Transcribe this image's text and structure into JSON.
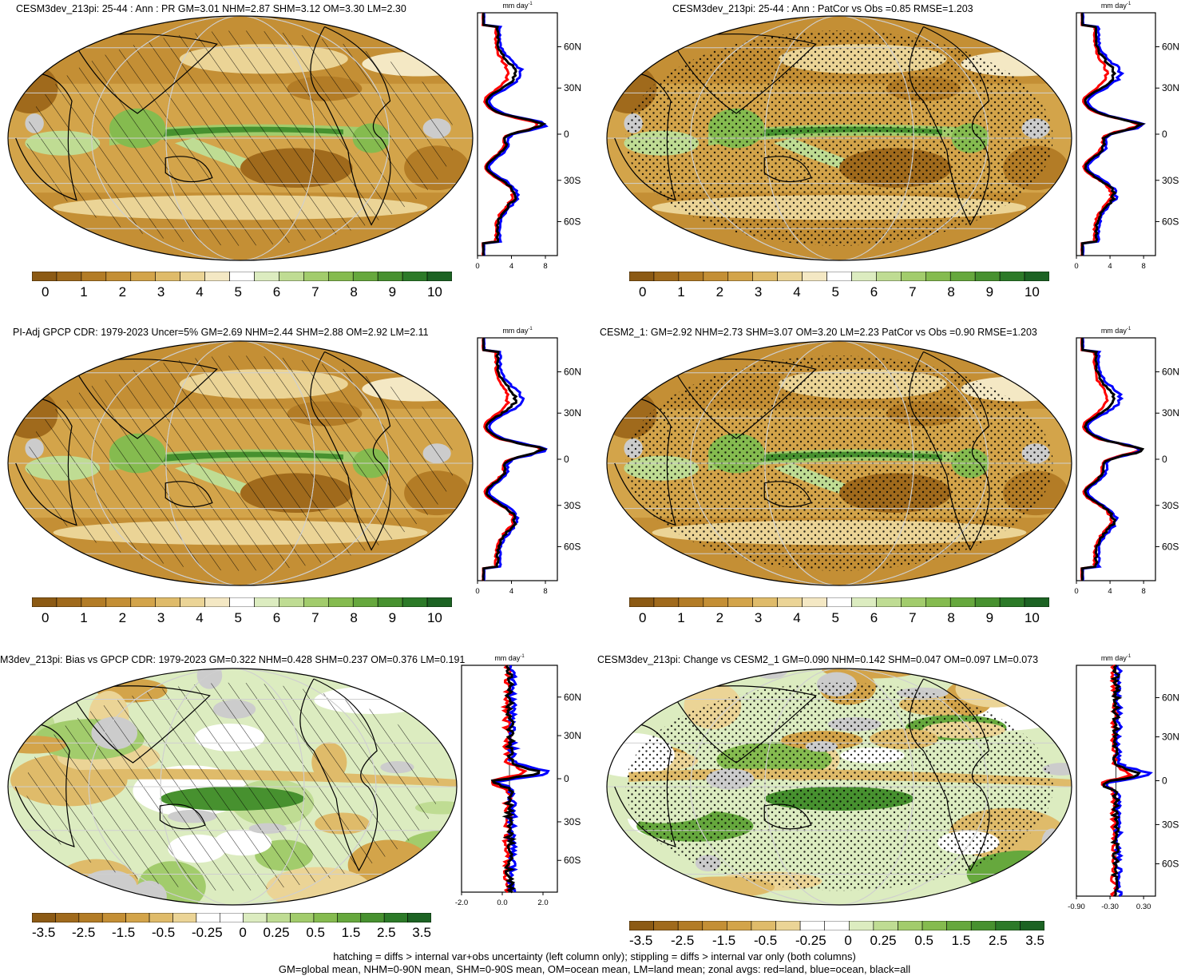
{
  "panels": [
    {
      "id": "p1",
      "title": "CESM3dev_213pi: 25-44 : Ann : PR GM=3.01 NHM=2.87 SHM=3.12 OM=3.30 LM=2.30",
      "pattern": "hatch",
      "colorbar": [
        "0",
        "1",
        "2",
        "3",
        "4",
        "5",
        "6",
        "7",
        "8",
        "9",
        "10"
      ],
      "xticks": [
        "0",
        "4",
        "8"
      ],
      "lats": [
        "60N",
        "30N",
        "0",
        "30S",
        "60S"
      ],
      "unit": "mm day",
      "unit_sup": "-1"
    },
    {
      "id": "p2",
      "title": "CESM3dev_213pi: 25-44 : Ann : PatCor vs Obs =0.85 RMSE=1.203",
      "pattern": "stipple",
      "colorbar": [
        "0",
        "1",
        "2",
        "3",
        "4",
        "5",
        "6",
        "7",
        "8",
        "9",
        "10"
      ],
      "xticks": [
        "0",
        "4",
        "8"
      ],
      "lats": [
        "60N",
        "30N",
        "0",
        "30S",
        "60S"
      ],
      "unit": "mm day",
      "unit_sup": "-1"
    },
    {
      "id": "p3",
      "title": "PI-Adj GPCP CDR: 1979-2023 Uncer=5% GM=2.69 NHM=2.44 SHM=2.88 OM=2.92 LM=2.11",
      "pattern": "hatch",
      "colorbar": [
        "0",
        "1",
        "2",
        "3",
        "4",
        "5",
        "6",
        "7",
        "8",
        "9",
        "10"
      ],
      "xticks": [
        "0",
        "4",
        "8"
      ],
      "lats": [
        "60N",
        "30N",
        "0",
        "30S",
        "60S"
      ],
      "unit": "mm day",
      "unit_sup": "-1"
    },
    {
      "id": "p4",
      "title": "CESM2_1: GM=2.92 NHM=2.73 SHM=3.07 OM=3.20 LM=2.23 PatCor vs Obs =0.90 RMSE=1.203",
      "pattern": "stipple",
      "colorbar": [
        "0",
        "1",
        "2",
        "3",
        "4",
        "5",
        "6",
        "7",
        "8",
        "9",
        "10"
      ],
      "xticks": [
        "0",
        "4",
        "8"
      ],
      "lats": [
        "60N",
        "30N",
        "0",
        "30S",
        "60S"
      ],
      "unit": "mm day",
      "unit_sup": "-1"
    },
    {
      "id": "p5",
      "title": "M3dev_213pi: Bias vs GPCP CDR: 1979-2023 GM=0.322 NHM=0.428 SHM=0.237 OM=0.376 LM=0.191",
      "pattern": "hatch",
      "colorbar": [
        "-3.5",
        "-2.5",
        "-1.5",
        "-0.5",
        "-0.25",
        "0",
        "0.25",
        "0.5",
        "1.5",
        "2.5",
        "3.5"
      ],
      "xticks": [
        "-2.0",
        "0.0",
        "2.0"
      ],
      "lats": [
        "60N",
        "30N",
        "0",
        "30S",
        "60S"
      ],
      "unit": "mm day",
      "unit_sup": "-1"
    },
    {
      "id": "p6",
      "title": "CESM3dev_213pi: Change vs CESM2_1 GM=0.090 NHM=0.142 SHM=0.047 OM=0.097 LM=0.073",
      "pattern": "stipple",
      "colorbar": [
        "-3.5",
        "-2.5",
        "-1.5",
        "-0.5",
        "-0.25",
        "0",
        "0.25",
        "0.5",
        "1.5",
        "2.5",
        "3.5"
      ],
      "xticks": [
        "-0.90",
        "-0.30",
        "0.30"
      ],
      "lats": [
        "60N",
        "30N",
        "0",
        "30S",
        "60S"
      ],
      "unit": "mm day",
      "unit_sup": "-1"
    }
  ],
  "colors": {
    "abs_scale": [
      "#8c5a14",
      "#a06a1c",
      "#b37c26",
      "#c48f35",
      "#d3a44a",
      "#dfbb6a",
      "#ebd496",
      "#f4e8c4",
      "#ffffff",
      "#dcecc0",
      "#bfdc93",
      "#a2cc6c",
      "#85bb4f",
      "#66a83d",
      "#47912f",
      "#2c7a28",
      "#1c6323"
    ],
    "diff_scale": [
      "#8c5a14",
      "#a06a1c",
      "#b37c26",
      "#c48f35",
      "#d3a44a",
      "#dfbb6a",
      "#ebd496",
      "#ffffff",
      "#ffffff",
      "#dcecc0",
      "#bfdc93",
      "#a2cc6c",
      "#85bb4f",
      "#66a83d",
      "#47912f",
      "#2c7a28",
      "#1c6323"
    ],
    "land_line": "#ff0000",
    "ocean_line": "#0000ff",
    "all_line": "#000000"
  },
  "footer": {
    "line1": "hatching = diffs > internal var+obs uncertainty (left column only); stippling = diffs > internal var only (both columns)",
    "line2": "GM=global mean, NHM=0-90N mean, SHM=0-90S mean, OM=ocean mean, LM=land mean; zonal avgs: red=land, blue=ocean, black=all"
  }
}
